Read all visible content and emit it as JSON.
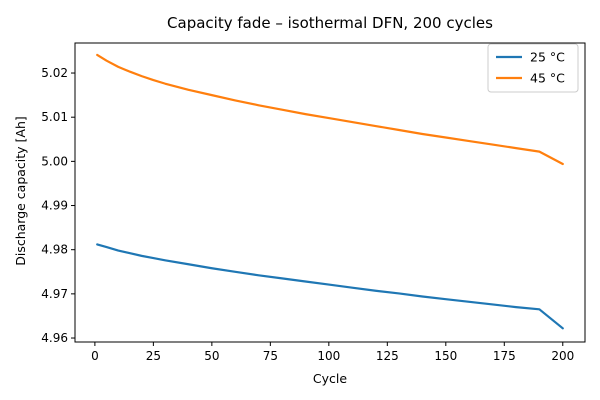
{
  "chart_data": {
    "type": "line",
    "title": "Capacity fade – isothermal DFN, 200 cycles",
    "xlabel": "Cycle",
    "ylabel": "Discharge capacity [Ah]",
    "xlim": [
      -8.5,
      209.5
    ],
    "ylim": [
      4.9591,
      5.0268
    ],
    "xticks": [
      0,
      25,
      50,
      75,
      100,
      125,
      150,
      175,
      200
    ],
    "yticks": [
      4.96,
      4.97,
      4.98,
      4.99,
      5.0,
      5.01,
      5.02
    ],
    "ytick_labels": [
      "4.96",
      "4.97",
      "4.98",
      "4.99",
      "5.00",
      "5.01",
      "5.02"
    ],
    "grid": false,
    "legend_position": "top-right",
    "series": [
      {
        "name": "25 °C",
        "color": "#1f77b4",
        "x": [
          1,
          5,
          10,
          15,
          20,
          25,
          30,
          40,
          50,
          60,
          70,
          80,
          90,
          100,
          110,
          120,
          130,
          140,
          150,
          160,
          170,
          180,
          190,
          200
        ],
        "y": [
          4.9812,
          4.9806,
          4.9798,
          4.9792,
          4.9786,
          4.9781,
          4.9776,
          4.9767,
          4.9758,
          4.975,
          4.9742,
          4.9735,
          4.9728,
          4.9721,
          4.9714,
          4.9707,
          4.9701,
          4.9694,
          4.9688,
          4.9682,
          4.9676,
          4.967,
          4.9665,
          4.9622
        ]
      },
      {
        "name": "45 °C",
        "color": "#ff7f0e",
        "x": [
          1,
          5,
          10,
          15,
          20,
          25,
          30,
          40,
          50,
          60,
          70,
          80,
          90,
          100,
          110,
          120,
          130,
          140,
          150,
          160,
          170,
          180,
          190,
          200
        ],
        "y": [
          5.0241,
          5.0228,
          5.0214,
          5.0203,
          5.0193,
          5.0184,
          5.0176,
          5.0162,
          5.015,
          5.0138,
          5.0127,
          5.0117,
          5.0107,
          5.0098,
          5.0089,
          5.008,
          5.0071,
          5.0062,
          5.0054,
          5.0046,
          5.0038,
          5.003,
          5.0022,
          4.9994
        ]
      }
    ]
  }
}
